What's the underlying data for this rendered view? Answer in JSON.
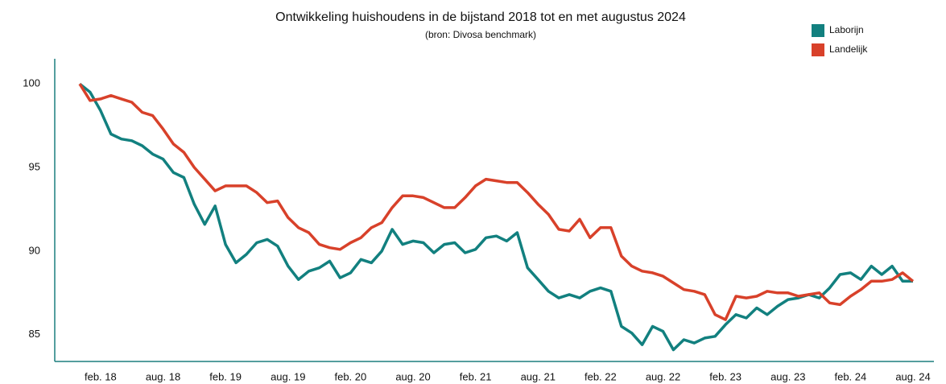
{
  "chart_data": {
    "type": "line",
    "title": "Ontwikkeling huishoudens in de bijstand 2018 tot en met augustus 2024",
    "subtitle": "(bron: Divosa benchmark)",
    "categories": [
      null,
      null,
      "feb. 18",
      null,
      null,
      null,
      null,
      null,
      "aug. 18",
      null,
      null,
      null,
      null,
      null,
      "feb. 19",
      null,
      null,
      null,
      null,
      null,
      "aug. 19",
      null,
      null,
      null,
      null,
      null,
      "feb. 20",
      null,
      null,
      null,
      null,
      null,
      "aug. 20",
      null,
      null,
      null,
      null,
      null,
      "feb. 21",
      null,
      null,
      null,
      null,
      null,
      "aug. 21",
      null,
      null,
      null,
      null,
      null,
      "feb. 22",
      null,
      null,
      null,
      null,
      null,
      "aug. 22",
      null,
      null,
      null,
      null,
      null,
      "feb. 23",
      null,
      null,
      null,
      null,
      null,
      "aug. 23",
      null,
      null,
      null,
      null,
      null,
      "feb. 24",
      null,
      null,
      null,
      null,
      null,
      "aug. 24"
    ],
    "series": [
      {
        "name": "Laborijn",
        "color": "#12807f",
        "values": [
          100,
          99.5,
          98.4,
          97.0,
          96.7,
          96.6,
          96.3,
          95.8,
          95.5,
          94.7,
          94.4,
          92.8,
          91.6,
          92.7,
          90.4,
          89.3,
          89.8,
          90.5,
          90.7,
          90.3,
          89.1,
          88.3,
          88.8,
          89.0,
          89.4,
          88.4,
          88.7,
          89.5,
          89.3,
          90.0,
          91.3,
          90.4,
          90.6,
          90.5,
          89.9,
          90.4,
          90.5,
          89.9,
          90.1,
          90.8,
          90.9,
          90.6,
          91.1,
          89.0,
          88.3,
          87.6,
          87.2,
          87.4,
          87.2,
          87.6,
          87.8,
          87.6,
          85.5,
          85.1,
          84.4,
          85.5,
          85.2,
          84.1,
          84.7,
          84.5,
          84.8,
          84.9,
          85.6,
          86.2,
          86.0,
          86.6,
          86.2,
          86.7,
          87.1,
          87.2,
          87.4,
          87.2,
          87.8,
          88.6,
          88.7,
          88.3,
          89.1,
          88.6,
          89.1,
          88.2,
          88.2
        ]
      },
      {
        "name": "Landelijk",
        "color": "#d8412a",
        "values": [
          100,
          99.0,
          99.1,
          99.3,
          99.1,
          98.9,
          98.3,
          98.1,
          97.3,
          96.4,
          95.9,
          95.0,
          94.3,
          93.6,
          93.9,
          93.9,
          93.9,
          93.5,
          92.9,
          93.0,
          92.0,
          91.4,
          91.1,
          90.4,
          90.2,
          90.1,
          90.5,
          90.8,
          91.4,
          91.7,
          92.6,
          93.3,
          93.3,
          93.2,
          92.9,
          92.6,
          92.6,
          93.2,
          93.9,
          94.3,
          94.2,
          94.1,
          94.1,
          93.5,
          92.8,
          92.2,
          91.3,
          91.2,
          91.9,
          90.8,
          91.4,
          91.4,
          89.7,
          89.1,
          88.8,
          88.7,
          88.5,
          88.1,
          87.7,
          87.6,
          87.4,
          86.2,
          85.9,
          87.3,
          87.2,
          87.3,
          87.6,
          87.5,
          87.5,
          87.3,
          87.4,
          87.5,
          86.9,
          86.8,
          87.3,
          87.7,
          88.2,
          88.2,
          88.3,
          88.7,
          88.2
        ]
      }
    ],
    "ylim": [
      83.4,
      101.5
    ],
    "yticks": [
      85,
      90,
      95,
      100
    ],
    "grid": false,
    "legend": "top-right"
  }
}
